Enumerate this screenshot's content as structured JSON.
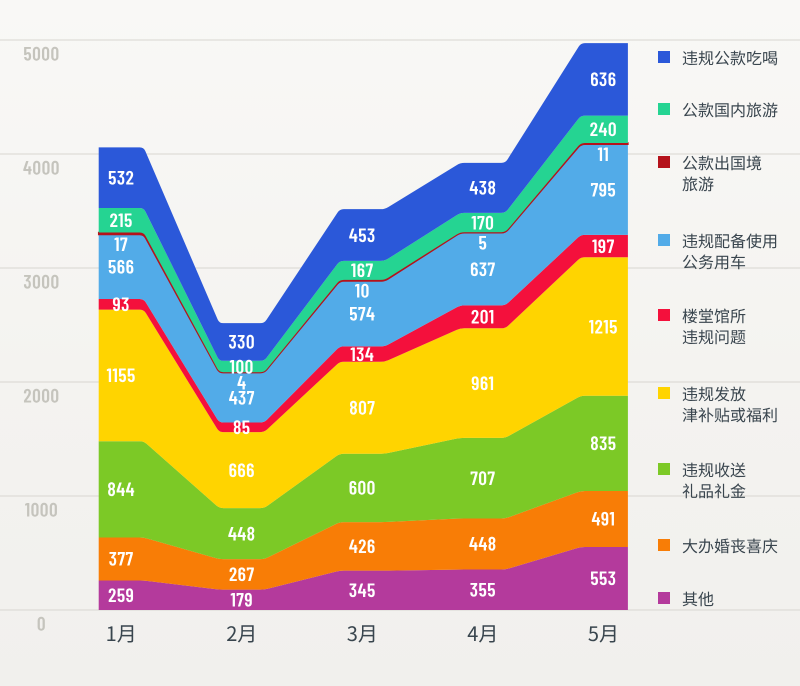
{
  "chart_data": {
    "type": "area",
    "stacked": true,
    "title": "",
    "xlabel": "",
    "ylabel": "",
    "categories": [
      "1月",
      "2月",
      "3月",
      "4月",
      "5月"
    ],
    "ylim": [
      0,
      5000
    ],
    "yticks": [
      0,
      1000,
      2000,
      3000,
      4000,
      5000
    ],
    "grid": true,
    "legend_position": "right",
    "value_labels_shown": true,
    "series": [
      {
        "name": "违规公款吃喝",
        "legend_lines": [
          "违规公款吃喝"
        ],
        "color": "#2b58d9",
        "values": [
          532,
          330,
          453,
          438,
          636
        ]
      },
      {
        "name": "公款国内旅游",
        "legend_lines": [
          "公款国内旅游"
        ],
        "color": "#25d492",
        "values": [
          215,
          100,
          167,
          170,
          240
        ]
      },
      {
        "name": "公款出国境旅游",
        "legend_lines": [
          "公款出国境",
          "旅游"
        ],
        "color": "#b5121b",
        "values": [
          17,
          4,
          10,
          5,
          11
        ]
      },
      {
        "name": "违规配备使用公务用车",
        "legend_lines": [
          "违规配备使用",
          "公务用车"
        ],
        "color": "#52abe8",
        "values": [
          566,
          437,
          574,
          637,
          795
        ]
      },
      {
        "name": "楼堂馆所违规问题",
        "legend_lines": [
          "楼堂馆所",
          "违规问题"
        ],
        "color": "#f4103c",
        "values": [
          93,
          85,
          134,
          201,
          197
        ]
      },
      {
        "name": "违规发放津补贴或福利",
        "legend_lines": [
          "违规发放",
          "津补贴或福利"
        ],
        "color": "#ffd400",
        "values": [
          1155,
          666,
          807,
          961,
          1215
        ]
      },
      {
        "name": "违规收送礼品礼金",
        "legend_lines": [
          "违规收送",
          "礼品礼金"
        ],
        "color": "#7cc926",
        "values": [
          844,
          448,
          600,
          707,
          835
        ]
      },
      {
        "name": "大办婚丧喜庆",
        "legend_lines": [
          "大办婚丧喜庆"
        ],
        "color": "#f87d06",
        "values": [
          377,
          267,
          426,
          448,
          491
        ]
      },
      {
        "name": "其他",
        "legend_lines": [
          "其他"
        ],
        "color": "#b43a9c",
        "values": [
          259,
          179,
          345,
          355,
          553
        ]
      }
    ],
    "colors": {
      "background_top": "#f9f8f6",
      "background_bottom": "#f1f0ed",
      "gridline": "#d8d6d1",
      "axis_tick_text": "#c5c4bd",
      "category_text": "#39454e",
      "legend_text": "#39454e",
      "value_label_text": "#ffffff"
    }
  }
}
